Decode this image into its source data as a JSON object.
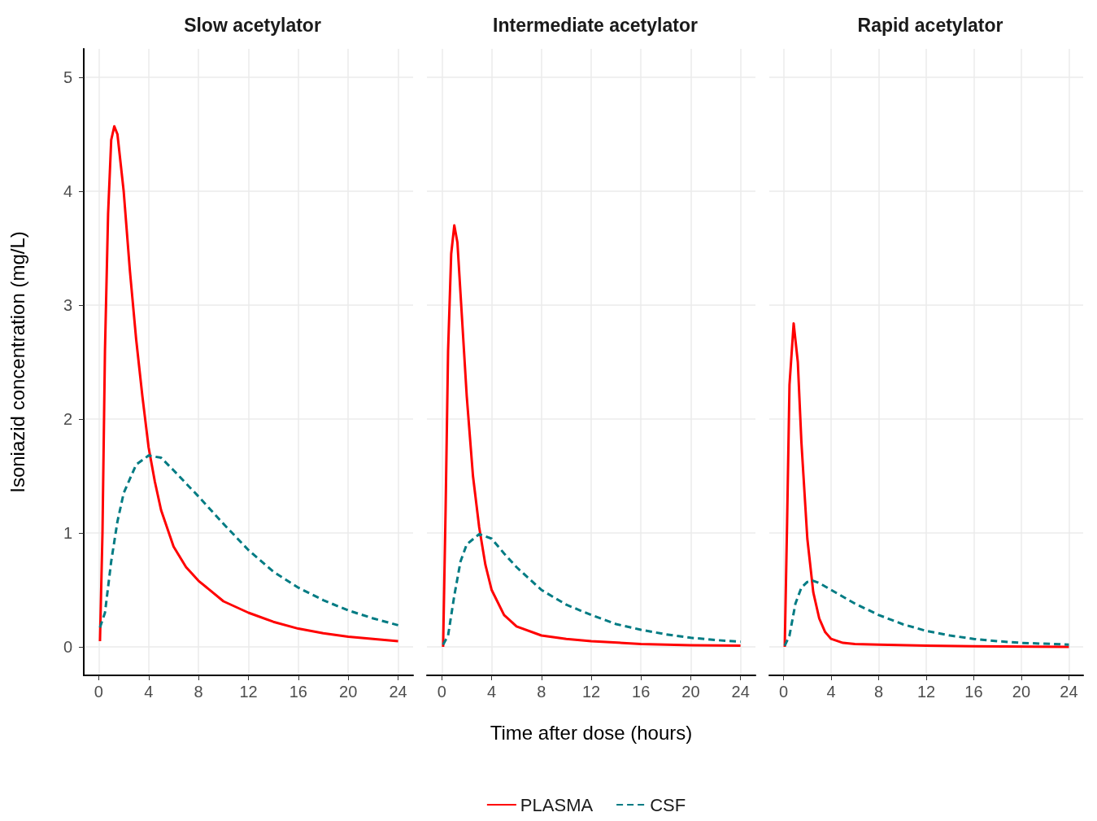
{
  "chart_data": [
    {
      "type": "line",
      "title": "Slow acetylator",
      "ylabel": "Isoniazid concentration (mg/L)",
      "xlim": [
        -1.2,
        25.2
      ],
      "xticks": [
        0,
        4,
        8,
        12,
        16,
        20,
        24
      ],
      "ylim": [
        -0.25,
        5.25
      ],
      "yticks": [
        0,
        1,
        2,
        3,
        4,
        5
      ],
      "grid": true,
      "legend": false,
      "series": [
        {
          "color": "#ff0000",
          "line_style": "solid",
          "x": [
            0.1,
            0.3,
            0.5,
            0.75,
            1,
            1.25,
            1.5,
            2,
            2.5,
            3,
            3.5,
            4,
            4.5,
            5,
            6,
            7,
            8,
            10,
            12,
            14,
            16,
            18,
            20,
            22,
            24
          ],
          "values": [
            0.05,
            1.0,
            2.6,
            3.8,
            4.45,
            4.57,
            4.5,
            4.0,
            3.3,
            2.7,
            2.2,
            1.75,
            1.45,
            1.2,
            0.88,
            0.7,
            0.58,
            0.4,
            0.3,
            0.22,
            0.16,
            0.12,
            0.09,
            0.07,
            0.05
          ]
        },
        {
          "color": "#007b83",
          "line_style": "dashed",
          "x": [
            0.1,
            0.5,
            1,
            1.5,
            2,
            3,
            4,
            5,
            6,
            8,
            10,
            12,
            14,
            16,
            18,
            20,
            22,
            24
          ],
          "values": [
            0.17,
            0.3,
            0.75,
            1.1,
            1.35,
            1.6,
            1.68,
            1.66,
            1.55,
            1.32,
            1.08,
            0.85,
            0.66,
            0.52,
            0.41,
            0.32,
            0.25,
            0.19
          ]
        }
      ]
    },
    {
      "type": "line",
      "title": "Intermediate acetylator",
      "xlabel": "Time after dose (hours)",
      "xlim": [
        -1.2,
        25.2
      ],
      "xticks": [
        0,
        4,
        8,
        12,
        16,
        20,
        24
      ],
      "ylim": [
        -0.25,
        5.25
      ],
      "yticks": [
        0,
        1,
        2,
        3,
        4,
        5
      ],
      "grid": true,
      "legend": "bottom",
      "tick_labels": "x",
      "series": [
        {
          "name": "PLASMA",
          "color": "#ff0000",
          "line_style": "solid",
          "x": [
            0.1,
            0.3,
            0.5,
            0.75,
            1,
            1.25,
            1.5,
            2,
            2.5,
            3,
            3.5,
            4,
            5,
            6,
            8,
            10,
            12,
            16,
            20,
            24
          ],
          "values": [
            0,
            1.2,
            2.6,
            3.45,
            3.7,
            3.55,
            3.1,
            2.2,
            1.5,
            1.05,
            0.72,
            0.5,
            0.28,
            0.18,
            0.1,
            0.07,
            0.05,
            0.025,
            0.015,
            0.01
          ]
        },
        {
          "name": "CSF",
          "color": "#007b83",
          "line_style": "dashed",
          "x": [
            0.1,
            0.5,
            1,
            1.5,
            2,
            3,
            4,
            5,
            6,
            8,
            10,
            12,
            14,
            16,
            18,
            20,
            22,
            24
          ],
          "values": [
            0.02,
            0.1,
            0.45,
            0.75,
            0.9,
            0.99,
            0.95,
            0.82,
            0.7,
            0.5,
            0.37,
            0.28,
            0.2,
            0.15,
            0.11,
            0.08,
            0.06,
            0.045
          ]
        }
      ]
    },
    {
      "type": "line",
      "title": "Rapid acetylator",
      "xlim": [
        -1.2,
        25.2
      ],
      "xticks": [
        0,
        4,
        8,
        12,
        16,
        20,
        24
      ],
      "ylim": [
        -0.25,
        5.25
      ],
      "yticks": [
        0,
        1,
        2,
        3,
        4,
        5
      ],
      "grid": true,
      "legend": false,
      "tick_labels": "x",
      "series": [
        {
          "color": "#ff0000",
          "line_style": "solid",
          "x": [
            0.1,
            0.3,
            0.5,
            0.85,
            1.2,
            1.5,
            2,
            2.5,
            3,
            3.5,
            4,
            5,
            6,
            8,
            12,
            16,
            24
          ],
          "values": [
            0,
            1.1,
            2.3,
            2.84,
            2.5,
            1.8,
            0.95,
            0.48,
            0.25,
            0.13,
            0.07,
            0.035,
            0.025,
            0.02,
            0.01,
            0.005,
            0
          ]
        },
        {
          "color": "#007b83",
          "line_style": "dashed",
          "x": [
            0.1,
            0.5,
            1,
            1.5,
            2,
            2.5,
            3,
            4,
            6,
            8,
            10,
            12,
            14,
            16,
            18,
            20,
            24
          ],
          "values": [
            0.01,
            0.1,
            0.38,
            0.52,
            0.57,
            0.58,
            0.56,
            0.5,
            0.38,
            0.28,
            0.2,
            0.14,
            0.1,
            0.07,
            0.05,
            0.035,
            0.02
          ]
        }
      ]
    }
  ]
}
